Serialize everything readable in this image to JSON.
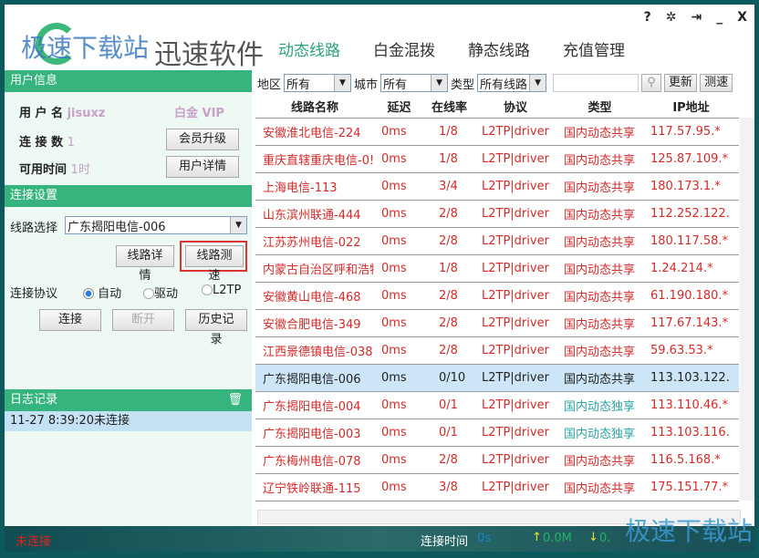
{
  "app": {
    "logo_text": "迅速软件",
    "watermark": "极速下载站"
  },
  "nav": [
    {
      "label": "动态线路",
      "active": true
    },
    {
      "label": "白金混拨"
    },
    {
      "label": "静态线路"
    },
    {
      "label": "充值管理"
    }
  ],
  "window_controls": {
    "help": "?",
    "settings": "✲",
    "exit": "⇥",
    "minimize": "_",
    "close": "X"
  },
  "user_info": {
    "title": "用户信息",
    "username_label": "用 户 名",
    "username": "jisuxz",
    "vip": "白金 VIP",
    "connections_label": "连 接 数",
    "connections": "1",
    "time_label": "可用时间",
    "time": "1时",
    "upgrade_btn": "会员升级",
    "details_btn": "用户详情"
  },
  "connect": {
    "title": "连接设置",
    "line_label": "线路选择",
    "line_value": "广东揭阳电信-006",
    "line_detail_btn": "线路详情",
    "line_speed_btn": "线路测速",
    "protocol_label": "连接协议",
    "protocols": [
      "自动",
      "驱动",
      "L2TP"
    ],
    "selected_protocol": "自动",
    "connect_btn": "连接",
    "disconnect_btn": "断开",
    "history_btn": "历史记录"
  },
  "log": {
    "title": "日志记录",
    "entries": [
      "11-27 8:39:20未连接"
    ]
  },
  "filter": {
    "region_label": "地区",
    "region": "所有",
    "city_label": "城市",
    "city": "所有",
    "type_label": "类型",
    "type": "所有线路",
    "search_value": "",
    "refresh_btn": "更新",
    "speed_btn": "测速"
  },
  "table": {
    "columns": [
      "线路名称",
      "延迟",
      "在线率",
      "协议",
      "类型",
      "IP地址"
    ],
    "rows": [
      [
        "安徽淮北电信-224",
        "0ms",
        "1/8",
        "L2TP|driver",
        "国内动态共享",
        "117.57.95.*"
      ],
      [
        "重庆直辖重庆电信-0!",
        "0ms",
        "1/8",
        "L2TP|driver",
        "国内动态共享",
        "125.87.109.*"
      ],
      [
        "上海电信-113",
        "0ms",
        "3/4",
        "L2TP|driver",
        "国内动态共享",
        "180.173.1.*"
      ],
      [
        "山东滨州联通-444",
        "0ms",
        "2/8",
        "L2TP|driver",
        "国内动态共享",
        "112.252.122."
      ],
      [
        "江苏苏州电信-022",
        "0ms",
        "2/8",
        "L2TP|driver",
        "国内动态共享",
        "180.117.58.*"
      ],
      [
        "内蒙古自治区呼和浩特",
        "0ms",
        "1/8",
        "L2TP|driver",
        "国内动态共享",
        "1.24.214.*"
      ],
      [
        "安徽黄山电信-468",
        "0ms",
        "2/8",
        "L2TP|driver",
        "国内动态共享",
        "61.190.180.*"
      ],
      [
        "安徽合肥电信-349",
        "0ms",
        "2/8",
        "L2TP|driver",
        "国内动态共享",
        "117.67.143.*"
      ],
      [
        "江西景德镇电信-038",
        "0ms",
        "2/8",
        "L2TP|driver",
        "国内动态共享",
        "59.63.53.*"
      ],
      [
        "广东揭阳电信-006",
        "0ms",
        "0/10",
        "L2TP|driver",
        "国内动态共享",
        "113.103.122."
      ],
      [
        "广东揭阳电信-004",
        "0ms",
        "0/1",
        "L2TP|driver",
        "国内动态独享",
        "113.110.46.*"
      ],
      [
        "广东揭阳电信-003",
        "0ms",
        "0/1",
        "L2TP|driver",
        "国内动态独享",
        "113.103.116."
      ],
      [
        "广东梅州电信-078",
        "0ms",
        "2/8",
        "L2TP|driver",
        "国内动态共享",
        "116.5.168.*"
      ],
      [
        "辽宁铁岭联通-115",
        "0ms",
        "3/8",
        "L2TP|driver",
        "国内动态共享",
        "175.151.77.*"
      ]
    ],
    "selected_index": 9
  },
  "status": {
    "state": "未连接",
    "time_label": "连接时间",
    "time": "0s",
    "up": "0.0M",
    "down": "0."
  },
  "colors": {
    "accent": "#35b57d",
    "row_text": "#d42a2a",
    "exclusive": "#2aa3a3",
    "selected_row": "#cde6f7",
    "frame": "#0d5a5c"
  }
}
